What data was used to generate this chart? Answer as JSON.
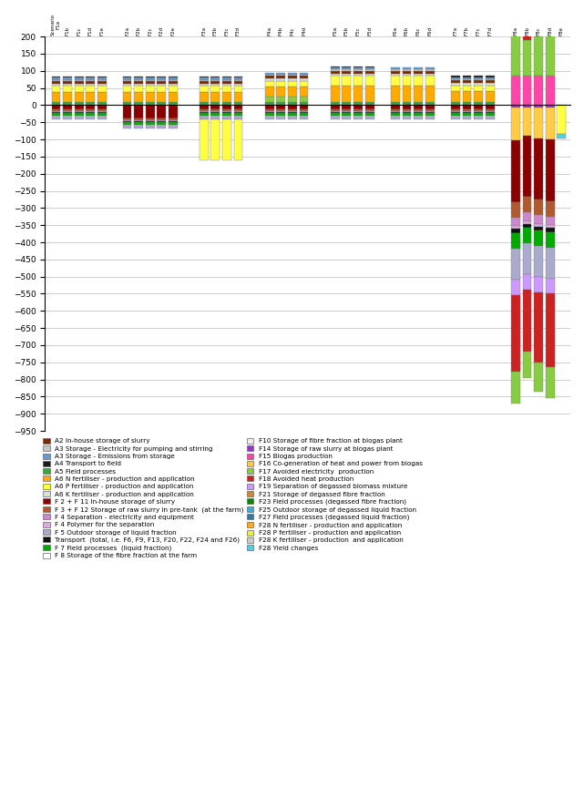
{
  "ylim": [
    -950,
    200
  ],
  "yticks": [
    200,
    150,
    100,
    50,
    0,
    -50,
    -100,
    -150,
    -200,
    -250,
    -300,
    -350,
    -400,
    -450,
    -500,
    -550,
    -600,
    -650,
    -700,
    -750,
    -800,
    -850,
    -900,
    -950
  ],
  "legend_items": [
    {
      "label": "A2 In-house storage of slurry",
      "color": "#7b2900"
    },
    {
      "label": "A3 Storage - Electricity for pumping and stirring",
      "color": "#c8c8c8"
    },
    {
      "label": "A3 Storage - Emissions from storage",
      "color": "#6699cc"
    },
    {
      "label": "A4 Transport to field",
      "color": "#1a1a1a"
    },
    {
      "label": "A5 Field processes",
      "color": "#33aa33"
    },
    {
      "label": "A6 N fertiliser - production and application",
      "color": "#ffaa00"
    },
    {
      "label": "A6 P fertiliser - production and application",
      "color": "#ffff44"
    },
    {
      "label": "A6 K fertiliser - production and application",
      "color": "#dddddd"
    },
    {
      "label": "F 2 + F 11 In-house storage of slurry",
      "color": "#8b0000"
    },
    {
      "label": "F 3 + F 12 Storage of raw slurry in pre-tank  (at the farm)",
      "color": "#b05a2f"
    },
    {
      "label": "F 4 Separation - electricity and equipment",
      "color": "#cc88cc"
    },
    {
      "label": "F 4 Polymer for the separation",
      "color": "#ddaadd"
    },
    {
      "label": "F 5 Outdoor storage of liquid fraction",
      "color": "#aaaacc"
    },
    {
      "label": "Transport  (total, i.e. F6, F9, F13, F20, F22, F24 and F26)",
      "color": "#111111"
    },
    {
      "label": "F 7 Field processes  (liquid fraction)",
      "color": "#00aa00"
    },
    {
      "label": "F 8 Storage of the fibre fraction at the farm",
      "color": "#ffffff"
    },
    {
      "label": "F10 Storage of fibre fraction at biogas plant",
      "color": "#eeeeee"
    },
    {
      "label": "F14 Storage of raw slurry at biogas plant",
      "color": "#9933cc"
    },
    {
      "label": "F15 Biogas production",
      "color": "#ff44aa"
    },
    {
      "label": "F16 Co-generation of heat and power from biogas",
      "color": "#ffcc44"
    },
    {
      "label": "F17 Avoided electricity  production",
      "color": "#88cc44"
    },
    {
      "label": "F18 Avoided heat production",
      "color": "#cc2222"
    },
    {
      "label": "F19 Separation of degassed biomass mixture",
      "color": "#cc99ff"
    },
    {
      "label": "F21 Storage of degassed fibre fraction",
      "color": "#cc8833"
    },
    {
      "label": "F23 Field processes (degassed fibre fraction)",
      "color": "#008800"
    },
    {
      "label": "F25 Outdoor storage of degassed liquid fraction",
      "color": "#44aacc"
    },
    {
      "label": "F27 Field processes (degassed liquid fraction)",
      "color": "#3377aa"
    },
    {
      "label": "F28 N fertiliser - production and application",
      "color": "#ffaa22"
    },
    {
      "label": "F28 P fertiliser - production and application",
      "color": "#eeee44"
    },
    {
      "label": "F28 K fertiliser - production  and application",
      "color": "#cccccc"
    },
    {
      "label": "F28 Yield changes",
      "color": "#55ccee"
    }
  ]
}
